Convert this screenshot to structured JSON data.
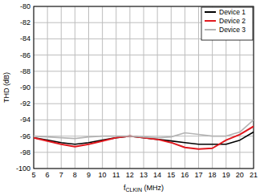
{
  "chart_data": {
    "type": "line",
    "xlabel": "fCLKIN (MHz)",
    "ylabel": "THD (dB)",
    "x": [
      5,
      6,
      7,
      8,
      9,
      10,
      11,
      12,
      13,
      14,
      15,
      16,
      17,
      18,
      19,
      20,
      21
    ],
    "series": [
      {
        "name": "Device 1",
        "color": "#000000",
        "values": [
          -96.2,
          -96.5,
          -96.8,
          -97.0,
          -96.8,
          -96.5,
          -96.2,
          -96.0,
          -96.2,
          -96.4,
          -96.6,
          -96.8,
          -97.0,
          -97.0,
          -97.0,
          -96.5,
          -95.5
        ]
      },
      {
        "name": "Device 2",
        "color": "#e0191f",
        "values": [
          -96.2,
          -96.6,
          -97.0,
          -97.3,
          -97.0,
          -96.6,
          -96.2,
          -96.0,
          -96.2,
          -96.4,
          -96.8,
          -97.4,
          -97.6,
          -97.5,
          -96.5,
          -95.8,
          -94.8
        ]
      },
      {
        "name": "Device 3",
        "color": "#b4b4b4",
        "values": [
          -96.0,
          -96.1,
          -96.2,
          -96.3,
          -96.1,
          -96.0,
          -96.0,
          -96.0,
          -96.1,
          -96.2,
          -96.1,
          -95.6,
          -95.8,
          -96.0,
          -96.0,
          -95.5,
          -94.0
        ]
      }
    ],
    "xlim": [
      5,
      21
    ],
    "xticks": [
      5,
      6,
      7,
      8,
      9,
      10,
      11,
      12,
      13,
      14,
      15,
      16,
      17,
      18,
      19,
      20,
      21
    ],
    "ylim": [
      -100,
      -80
    ],
    "yticks": [
      -100,
      -98,
      -96,
      -94,
      -92,
      -90,
      -88,
      -86,
      -84,
      -82,
      -80
    ],
    "grid": true,
    "legend": "top-right"
  }
}
